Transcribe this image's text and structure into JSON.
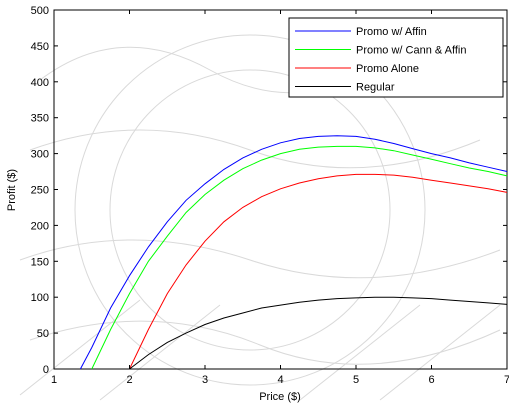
{
  "chart_data": {
    "type": "line",
    "title": "",
    "xlabel": "Price ($)",
    "ylabel": "Profit ($)",
    "xlim": [
      1,
      7
    ],
    "ylim": [
      0,
      500
    ],
    "xticks": [
      1,
      2,
      3,
      4,
      5,
      6,
      7
    ],
    "yticks": [
      0,
      50,
      100,
      150,
      200,
      250,
      300,
      350,
      400,
      450,
      500
    ],
    "grid": false,
    "legend_position": "top-right",
    "series": [
      {
        "name": "Promo w/ Affin",
        "color": "#0000ff",
        "x": [
          1.35,
          1.5,
          1.75,
          2.0,
          2.25,
          2.5,
          2.75,
          3.0,
          3.25,
          3.5,
          3.75,
          4.0,
          4.25,
          4.5,
          4.75,
          5.0,
          5.25,
          5.5,
          5.75,
          6.0,
          6.25,
          6.5,
          6.75,
          7.0
        ],
        "y": [
          0,
          30,
          85,
          130,
          170,
          205,
          235,
          258,
          278,
          294,
          306,
          315,
          321,
          324,
          325,
          324,
          320,
          314,
          307,
          300,
          294,
          287,
          281,
          275
        ]
      },
      {
        "name": "Promo w/ Cann & Affin",
        "color": "#00ff00",
        "x": [
          1.5,
          1.75,
          2.0,
          2.25,
          2.5,
          2.75,
          3.0,
          3.25,
          3.5,
          3.75,
          4.0,
          4.25,
          4.5,
          4.75,
          5.0,
          5.25,
          5.5,
          5.75,
          6.0,
          6.25,
          6.5,
          6.75,
          7.0
        ],
        "y": [
          0,
          55,
          105,
          150,
          185,
          218,
          243,
          263,
          279,
          291,
          300,
          306,
          309,
          310,
          310,
          308,
          304,
          298,
          292,
          286,
          280,
          275,
          269
        ]
      },
      {
        "name": "Promo Alone",
        "color": "#ff0000",
        "x": [
          2.0,
          2.25,
          2.5,
          2.75,
          3.0,
          3.25,
          3.5,
          3.75,
          4.0,
          4.25,
          4.5,
          4.75,
          5.0,
          5.25,
          5.5,
          5.75,
          6.0,
          6.25,
          6.5,
          6.75,
          7.0
        ],
        "y": [
          0,
          55,
          105,
          145,
          178,
          205,
          225,
          240,
          251,
          259,
          265,
          269,
          271,
          271,
          270,
          267,
          263,
          259,
          255,
          251,
          246
        ]
      },
      {
        "name": "Regular",
        "color": "#000000",
        "x": [
          2.0,
          2.25,
          2.5,
          2.75,
          3.0,
          3.25,
          3.5,
          3.75,
          4.0,
          4.25,
          4.5,
          4.75,
          5.0,
          5.25,
          5.5,
          5.75,
          6.0,
          6.25,
          6.5,
          6.75,
          7.0
        ],
        "y": [
          0,
          20,
          37,
          50,
          62,
          71,
          78,
          85,
          89,
          93,
          96,
          98,
          99,
          100,
          100,
          99,
          98,
          96,
          94,
          92,
          90
        ]
      }
    ]
  }
}
